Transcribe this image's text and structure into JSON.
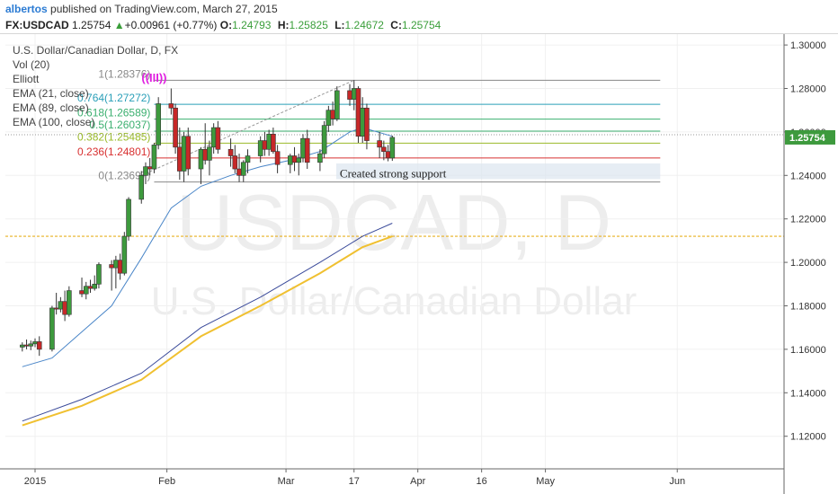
{
  "header": {
    "author": "albertos",
    "published_text": "published on TradingView.com, March 27, 2015",
    "symbol": "FX:USDCAD",
    "last": "1.25754",
    "change": "+0.00961 (+0.77%)",
    "open_label": "O:",
    "open": "1.24793",
    "high_label": "H:",
    "high": "1.25825",
    "low_label": "L:",
    "low": "1.24672",
    "close_label": "C:",
    "close": "1.25754"
  },
  "legend": {
    "title": "U.S. Dollar/Canadian Dollar, D, FX",
    "vol": "Vol (20)",
    "elliott": "Elliott",
    "ema21": "EMA (21, close)",
    "ema89": "EMA (89, close)",
    "ema100": "EMA (100, close)"
  },
  "watermark": {
    "symbol": "USDCAD, D",
    "name": "U.S. Dollar/Canadian Dollar"
  },
  "annotation": "Created strong support",
  "elliott_label": "((III))",
  "price_tag": "1.25754",
  "colors": {
    "up": "#3d9a3d",
    "down": "#c62828",
    "ema21": "#4a86c8",
    "ema89": "#3a4a9a",
    "ema100": "#f0c030",
    "elliott": "#e020e0",
    "guide": "#e8b020",
    "support_box": "#dbe6ef"
  },
  "chart_data": {
    "type": "candlestick",
    "title": "U.S. Dollar/Canadian Dollar, D, FX",
    "ylim": [
      1.105,
      1.305
    ],
    "y_ticks": [
      "1.30000",
      "1.28000",
      "1.26000",
      "1.24000",
      "1.22000",
      "1.20000",
      "1.18000",
      "1.16000",
      "1.14000",
      "1.12000"
    ],
    "x_ticks": [
      {
        "label": "2015",
        "date": "2015-01-01"
      },
      {
        "label": "Feb",
        "date": "2015-02-01"
      },
      {
        "label": "Mar",
        "date": "2015-03-01"
      },
      {
        "label": "17",
        "date": "2015-03-17"
      },
      {
        "label": "Apr",
        "date": "2015-04-01"
      },
      {
        "label": "16",
        "date": "2015-04-16"
      },
      {
        "label": "May",
        "date": "2015-05-01"
      },
      {
        "label": "Jun",
        "date": "2015-06-01"
      }
    ],
    "candles": [
      {
        "date": "2014-12-29",
        "o": 1.161,
        "h": 1.1632,
        "l": 1.159,
        "c": 1.162
      },
      {
        "date": "2014-12-30",
        "o": 1.162,
        "h": 1.1645,
        "l": 1.16,
        "c": 1.1615
      },
      {
        "date": "2014-12-31",
        "o": 1.1615,
        "h": 1.164,
        "l": 1.1596,
        "c": 1.1625
      },
      {
        "date": "2015-01-01",
        "o": 1.1625,
        "h": 1.165,
        "l": 1.161,
        "c": 1.1635
      },
      {
        "date": "2015-01-02",
        "o": 1.1635,
        "h": 1.166,
        "l": 1.157,
        "c": 1.16
      },
      {
        "date": "2015-01-05",
        "o": 1.16,
        "h": 1.18,
        "l": 1.159,
        "c": 1.179
      },
      {
        "date": "2015-01-06",
        "o": 1.179,
        "h": 1.186,
        "l": 1.176,
        "c": 1.1785
      },
      {
        "date": "2015-01-07",
        "o": 1.1785,
        "h": 1.184,
        "l": 1.177,
        "c": 1.182
      },
      {
        "date": "2015-01-08",
        "o": 1.182,
        "h": 1.187,
        "l": 1.173,
        "c": 1.176
      },
      {
        "date": "2015-01-09",
        "o": 1.176,
        "h": 1.189,
        "l": 1.175,
        "c": 1.187
      },
      {
        "date": "2015-01-12",
        "o": 1.187,
        "h": 1.193,
        "l": 1.184,
        "c": 1.1855
      },
      {
        "date": "2015-01-13",
        "o": 1.1855,
        "h": 1.191,
        "l": 1.183,
        "c": 1.189
      },
      {
        "date": "2015-01-14",
        "o": 1.189,
        "h": 1.192,
        "l": 1.186,
        "c": 1.188
      },
      {
        "date": "2015-01-15",
        "o": 1.188,
        "h": 1.194,
        "l": 1.187,
        "c": 1.19
      },
      {
        "date": "2015-01-16",
        "o": 1.19,
        "h": 1.2,
        "l": 1.188,
        "c": 1.199
      },
      {
        "date": "2015-01-19",
        "o": 1.199,
        "h": 1.201,
        "l": 1.187,
        "c": 1.1975
      },
      {
        "date": "2015-01-20",
        "o": 1.1975,
        "h": 1.203,
        "l": 1.188,
        "c": 1.201
      },
      {
        "date": "2015-01-21",
        "o": 1.201,
        "h": 1.204,
        "l": 1.192,
        "c": 1.195
      },
      {
        "date": "2015-01-22",
        "o": 1.195,
        "h": 1.214,
        "l": 1.194,
        "c": 1.212
      },
      {
        "date": "2015-01-23",
        "o": 1.212,
        "h": 1.23,
        "l": 1.21,
        "c": 1.229
      },
      {
        "date": "2015-01-26",
        "o": 1.229,
        "h": 1.242,
        "l": 1.227,
        "c": 1.24
      },
      {
        "date": "2015-01-27",
        "o": 1.24,
        "h": 1.246,
        "l": 1.236,
        "c": 1.244
      },
      {
        "date": "2015-01-28",
        "o": 1.244,
        "h": 1.248,
        "l": 1.24,
        "c": 1.243
      },
      {
        "date": "2015-01-29",
        "o": 1.243,
        "h": 1.255,
        "l": 1.241,
        "c": 1.254
      },
      {
        "date": "2015-01-30",
        "o": 1.254,
        "h": 1.276,
        "l": 1.252,
        "c": 1.273
      },
      {
        "date": "2015-02-02",
        "o": 1.273,
        "h": 1.28,
        "l": 1.268,
        "c": 1.271
      },
      {
        "date": "2015-02-03",
        "o": 1.271,
        "h": 1.273,
        "l": 1.25,
        "c": 1.253
      },
      {
        "date": "2015-02-04",
        "o": 1.253,
        "h": 1.262,
        "l": 1.238,
        "c": 1.242
      },
      {
        "date": "2015-02-05",
        "o": 1.242,
        "h": 1.26,
        "l": 1.237,
        "c": 1.258
      },
      {
        "date": "2015-02-06",
        "o": 1.258,
        "h": 1.262,
        "l": 1.24,
        "c": 1.243
      },
      {
        "date": "2015-02-09",
        "o": 1.243,
        "h": 1.253,
        "l": 1.236,
        "c": 1.252
      },
      {
        "date": "2015-02-10",
        "o": 1.252,
        "h": 1.264,
        "l": 1.245,
        "c": 1.247
      },
      {
        "date": "2015-02-11",
        "o": 1.247,
        "h": 1.256,
        "l": 1.24,
        "c": 1.253
      },
      {
        "date": "2015-02-12",
        "o": 1.253,
        "h": 1.264,
        "l": 1.25,
        "c": 1.262
      },
      {
        "date": "2015-02-13",
        "o": 1.262,
        "h": 1.265,
        "l": 1.25,
        "c": 1.252
      },
      {
        "date": "2015-02-16",
        "o": 1.252,
        "h": 1.257,
        "l": 1.244,
        "c": 1.249
      },
      {
        "date": "2015-02-17",
        "o": 1.249,
        "h": 1.254,
        "l": 1.241,
        "c": 1.243
      },
      {
        "date": "2015-02-18",
        "o": 1.243,
        "h": 1.25,
        "l": 1.237,
        "c": 1.24
      },
      {
        "date": "2015-02-19",
        "o": 1.24,
        "h": 1.247,
        "l": 1.237,
        "c": 1.246
      },
      {
        "date": "2015-02-20",
        "o": 1.246,
        "h": 1.252,
        "l": 1.241,
        "c": 1.249
      },
      {
        "date": "2015-02-23",
        "o": 1.249,
        "h": 1.258,
        "l": 1.246,
        "c": 1.256
      },
      {
        "date": "2015-02-24",
        "o": 1.256,
        "h": 1.26,
        "l": 1.249,
        "c": 1.252
      },
      {
        "date": "2015-02-25",
        "o": 1.252,
        "h": 1.261,
        "l": 1.249,
        "c": 1.259
      },
      {
        "date": "2015-02-26",
        "o": 1.259,
        "h": 1.262,
        "l": 1.25,
        "c": 1.251
      },
      {
        "date": "2015-02-27",
        "o": 1.251,
        "h": 1.254,
        "l": 1.241,
        "c": 1.245
      },
      {
        "date": "2015-03-02",
        "o": 1.245,
        "h": 1.25,
        "l": 1.241,
        "c": 1.249
      },
      {
        "date": "2015-03-03",
        "o": 1.249,
        "h": 1.253,
        "l": 1.242,
        "c": 1.246
      },
      {
        "date": "2015-03-04",
        "o": 1.246,
        "h": 1.25,
        "l": 1.24,
        "c": 1.248
      },
      {
        "date": "2015-03-05",
        "o": 1.248,
        "h": 1.259,
        "l": 1.246,
        "c": 1.257
      },
      {
        "date": "2015-03-06",
        "o": 1.257,
        "h": 1.261,
        "l": 1.243,
        "c": 1.246
      },
      {
        "date": "2015-03-09",
        "o": 1.246,
        "h": 1.252,
        "l": 1.242,
        "c": 1.25
      },
      {
        "date": "2015-03-10",
        "o": 1.25,
        "h": 1.265,
        "l": 1.248,
        "c": 1.263
      },
      {
        "date": "2015-03-11",
        "o": 1.263,
        "h": 1.272,
        "l": 1.26,
        "c": 1.27
      },
      {
        "date": "2015-03-12",
        "o": 1.27,
        "h": 1.274,
        "l": 1.263,
        "c": 1.266
      },
      {
        "date": "2015-03-13",
        "o": 1.266,
        "h": 1.281,
        "l": 1.265,
        "c": 1.279
      },
      {
        "date": "2015-03-16",
        "o": 1.279,
        "h": 1.282,
        "l": 1.272,
        "c": 1.275
      },
      {
        "date": "2015-03-17",
        "o": 1.275,
        "h": 1.2838,
        "l": 1.27,
        "c": 1.28
      },
      {
        "date": "2015-03-18",
        "o": 1.28,
        "h": 1.281,
        "l": 1.255,
        "c": 1.258
      },
      {
        "date": "2015-03-19",
        "o": 1.258,
        "h": 1.276,
        "l": 1.255,
        "c": 1.271
      },
      {
        "date": "2015-03-20",
        "o": 1.271,
        "h": 1.273,
        "l": 1.252,
        "c": 1.256
      },
      {
        "date": "2015-03-23",
        "o": 1.256,
        "h": 1.26,
        "l": 1.248,
        "c": 1.253
      },
      {
        "date": "2015-03-24",
        "o": 1.253,
        "h": 1.256,
        "l": 1.247,
        "c": 1.251
      },
      {
        "date": "2015-03-25",
        "o": 1.251,
        "h": 1.254,
        "l": 1.2465,
        "c": 1.248
      },
      {
        "date": "2015-03-26",
        "o": 1.248,
        "h": 1.2583,
        "l": 1.2467,
        "c": 1.2575
      }
    ],
    "ema21": [
      {
        "date": "2014-12-29",
        "v": 1.152
      },
      {
        "date": "2015-01-05",
        "v": 1.156
      },
      {
        "date": "2015-01-12",
        "v": 1.168
      },
      {
        "date": "2015-01-19",
        "v": 1.18
      },
      {
        "date": "2015-01-26",
        "v": 1.202
      },
      {
        "date": "2015-02-02",
        "v": 1.225
      },
      {
        "date": "2015-02-09",
        "v": 1.235
      },
      {
        "date": "2015-02-16",
        "v": 1.24
      },
      {
        "date": "2015-02-23",
        "v": 1.244
      },
      {
        "date": "2015-03-02",
        "v": 1.247
      },
      {
        "date": "2015-03-09",
        "v": 1.251
      },
      {
        "date": "2015-03-16",
        "v": 1.26
      },
      {
        "date": "2015-03-19",
        "v": 1.262
      },
      {
        "date": "2015-03-26",
        "v": 1.258
      }
    ],
    "ema89": [
      {
        "date": "2014-12-29",
        "v": 1.127
      },
      {
        "date": "2015-01-12",
        "v": 1.137
      },
      {
        "date": "2015-01-26",
        "v": 1.149
      },
      {
        "date": "2015-02-09",
        "v": 1.17
      },
      {
        "date": "2015-02-23",
        "v": 1.184
      },
      {
        "date": "2015-03-09",
        "v": 1.2
      },
      {
        "date": "2015-03-19",
        "v": 1.212
      },
      {
        "date": "2015-03-26",
        "v": 1.218
      }
    ],
    "ema100": [
      {
        "date": "2014-12-29",
        "v": 1.125
      },
      {
        "date": "2015-01-12",
        "v": 1.134
      },
      {
        "date": "2015-01-26",
        "v": 1.146
      },
      {
        "date": "2015-02-09",
        "v": 1.166
      },
      {
        "date": "2015-02-23",
        "v": 1.18
      },
      {
        "date": "2015-03-09",
        "v": 1.195
      },
      {
        "date": "2015-03-19",
        "v": 1.207
      },
      {
        "date": "2015-03-26",
        "v": 1.212
      }
    ],
    "fib_levels": [
      {
        "ratio": "1",
        "price": 1.28376,
        "label": "1(1.28376)",
        "color": "#888888"
      },
      {
        "ratio": "0.764",
        "price": 1.27272,
        "label": "0.764(1.27272)",
        "color": "#2a9fb8"
      },
      {
        "ratio": "0.618",
        "price": 1.26589,
        "label": "0.618(1.26589)",
        "color": "#3cb070"
      },
      {
        "ratio": "0.5",
        "price": 1.26037,
        "label": "0.5(1.26037)",
        "color": "#3cb070"
      },
      {
        "ratio": "0.382",
        "price": 1.25485,
        "label": "0.382(1.25485)",
        "color": "#9aba28"
      },
      {
        "ratio": "0.236",
        "price": 1.24801,
        "label": "0.236(1.24801)",
        "color": "#d83030"
      },
      {
        "ratio": "0",
        "price": 1.23697,
        "label": "0(1.23697)",
        "color": "#888888"
      }
    ],
    "fib_range": {
      "start": "2015-01-29",
      "end": "2015-05-28"
    },
    "trendline": {
      "start_date": "2015-01-26",
      "start_price": 1.24,
      "end_date": "2015-03-17",
      "end_price": 1.2838
    },
    "guide_level": 1.212,
    "support_box": {
      "start": "2015-03-09",
      "end": "2015-05-28",
      "top": 1.2455,
      "bottom": 1.2383
    }
  }
}
